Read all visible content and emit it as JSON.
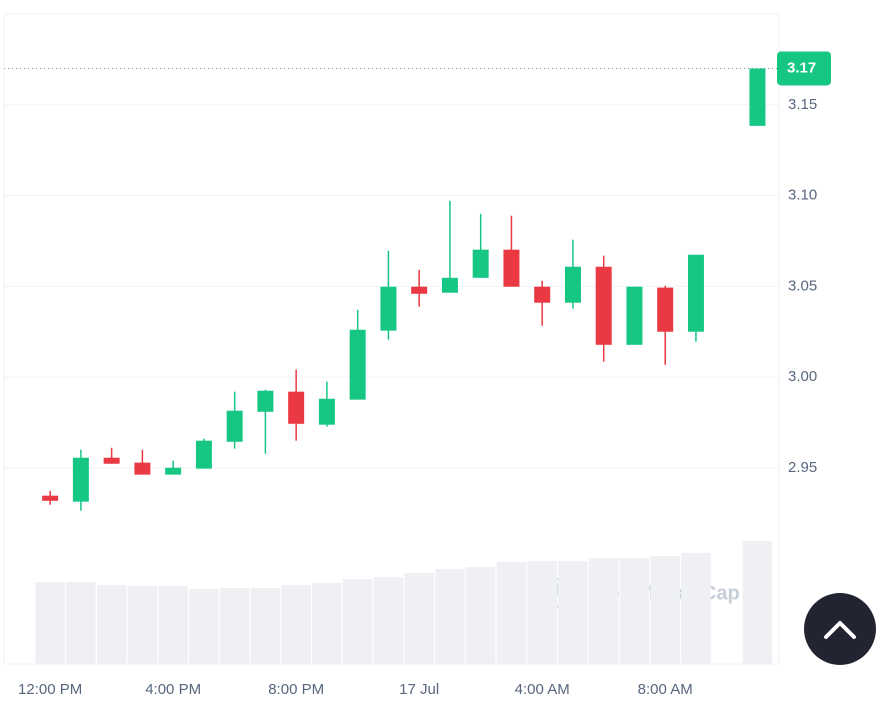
{
  "chart_data": {
    "type": "candlestick",
    "x": [
      0,
      1,
      2,
      3,
      4,
      5,
      6,
      7,
      8,
      9,
      10,
      11,
      12,
      13,
      14,
      15,
      16,
      17,
      18,
      19,
      20,
      21,
      23
    ],
    "open": [
      2.9347,
      2.9314,
      2.9556,
      2.9529,
      2.9463,
      2.9496,
      2.9644,
      2.9809,
      2.992,
      2.9738,
      2.9876,
      3.0256,
      3.0498,
      3.0465,
      3.0547,
      3.0702,
      3.0498,
      3.041,
      3.0608,
      3.0178,
      3.0493,
      3.025,
      3.1384
    ],
    "high": [
      2.9374,
      2.96,
      2.9611,
      2.96,
      2.954,
      2.9661,
      2.992,
      2.9931,
      3.0041,
      2.9975,
      3.0371,
      3.0696,
      3.0591,
      3.0971,
      3.09,
      3.0889,
      3.0531,
      3.0757,
      3.0669,
      3.0498,
      3.0503,
      3.0674,
      3.17
    ],
    "low": [
      2.9297,
      2.9264,
      2.9523,
      2.9463,
      2.9463,
      2.9496,
      2.9606,
      2.9578,
      2.965,
      2.9727,
      2.9876,
      3.0206,
      3.0388,
      3.0465,
      3.0547,
      3.0498,
      3.0283,
      3.0377,
      3.0085,
      3.0178,
      3.0068,
      3.0195,
      3.1384
    ],
    "close": [
      2.9319,
      2.9556,
      2.9523,
      2.9463,
      2.9501,
      2.965,
      2.9815,
      2.9925,
      2.9743,
      2.9881,
      3.0261,
      3.0498,
      3.0459,
      3.0547,
      3.0702,
      3.0498,
      3.041,
      3.0608,
      3.0178,
      3.0498,
      3.025,
      3.0674,
      3.17
    ],
    "volume": [
      82,
      82,
      79,
      78,
      78,
      75,
      76,
      76,
      79,
      81,
      85,
      87,
      91,
      95,
      97,
      102,
      103,
      103,
      106,
      106,
      108,
      111,
      123
    ],
    "up_color": "#16c784",
    "down_color": "#ea3943",
    "volume_color": "#eef0f3",
    "current_price": 3.17,
    "xlim": [
      -1.5,
      23.7
    ],
    "ylim": [
      2.842,
      3.2
    ],
    "xticks": [
      {
        "value": 0,
        "label": "12:00 PM"
      },
      {
        "value": 4,
        "label": "4:00 PM"
      },
      {
        "value": 8,
        "label": "8:00 PM"
      },
      {
        "value": 12,
        "label": "17 Jul"
      },
      {
        "value": 16,
        "label": "4:00 AM"
      },
      {
        "value": 20,
        "label": "8:00 AM"
      }
    ],
    "yticks": [
      2.95,
      {
        "value": 3.0,
        "label": "3.00"
      },
      3.05,
      {
        "value": 3.1,
        "label": "3.10"
      },
      3.15
    ],
    "grid": true,
    "watermark": "CoinMarketCap"
  }
}
